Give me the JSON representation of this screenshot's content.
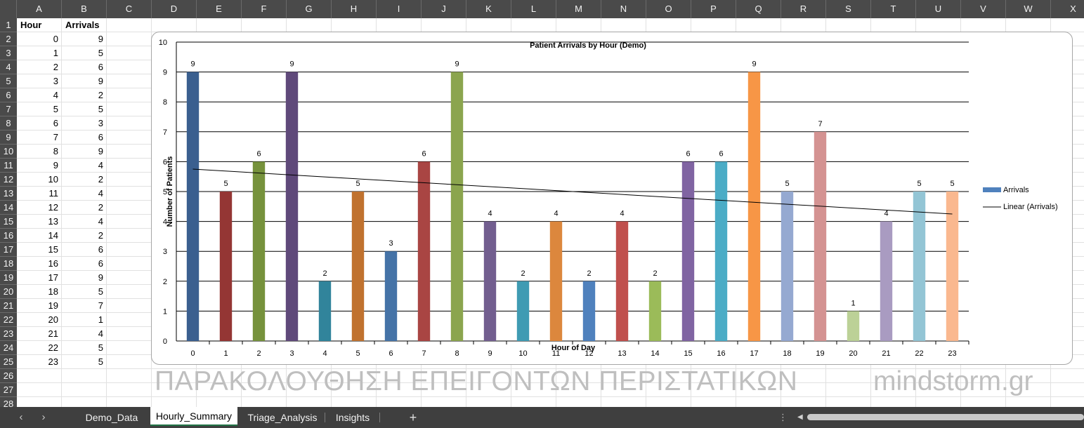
{
  "columns": [
    "A",
    "B",
    "C",
    "D",
    "E",
    "F",
    "G",
    "H",
    "I",
    "J",
    "K",
    "L",
    "M",
    "N",
    "O",
    "P",
    "Q",
    "R",
    "S",
    "T",
    "U",
    "V",
    "W",
    "X"
  ],
  "rows": [
    "1",
    "2",
    "3",
    "4",
    "5",
    "6",
    "7",
    "8",
    "9",
    "10",
    "11",
    "12",
    "13",
    "14",
    "15",
    "16",
    "17",
    "18",
    "19",
    "20",
    "21",
    "22",
    "23",
    "24",
    "25",
    "26",
    "27",
    "28"
  ],
  "sheet": {
    "header_hour": "Hour",
    "header_arrivals": "Arrivals",
    "data": [
      {
        "hour": "0",
        "arrivals": "9"
      },
      {
        "hour": "1",
        "arrivals": "5"
      },
      {
        "hour": "2",
        "arrivals": "6"
      },
      {
        "hour": "3",
        "arrivals": "9"
      },
      {
        "hour": "4",
        "arrivals": "2"
      },
      {
        "hour": "5",
        "arrivals": "5"
      },
      {
        "hour": "6",
        "arrivals": "3"
      },
      {
        "hour": "7",
        "arrivals": "6"
      },
      {
        "hour": "8",
        "arrivals": "9"
      },
      {
        "hour": "9",
        "arrivals": "4"
      },
      {
        "hour": "10",
        "arrivals": "2"
      },
      {
        "hour": "11",
        "arrivals": "4"
      },
      {
        "hour": "12",
        "arrivals": "2"
      },
      {
        "hour": "13",
        "arrivals": "4"
      },
      {
        "hour": "14",
        "arrivals": "2"
      },
      {
        "hour": "15",
        "arrivals": "6"
      },
      {
        "hour": "16",
        "arrivals": "6"
      },
      {
        "hour": "17",
        "arrivals": "9"
      },
      {
        "hour": "18",
        "arrivals": "5"
      },
      {
        "hour": "19",
        "arrivals": "7"
      },
      {
        "hour": "20",
        "arrivals": "1"
      },
      {
        "hour": "21",
        "arrivals": "4"
      },
      {
        "hour": "22",
        "arrivals": "5"
      },
      {
        "hour": "23",
        "arrivals": "5"
      }
    ]
  },
  "chart_data": {
    "type": "bar",
    "title": "Patient Arrivals by Hour (Demo)",
    "xlabel": "Hour of Day",
    "ylabel": "Number of Patients",
    "ylim": [
      0,
      10
    ],
    "yticks": [
      0,
      1,
      2,
      3,
      4,
      5,
      6,
      7,
      8,
      9,
      10
    ],
    "grid": true,
    "legend_position": "right",
    "categories": [
      "0",
      "1",
      "2",
      "3",
      "4",
      "5",
      "6",
      "7",
      "8",
      "9",
      "10",
      "11",
      "12",
      "13",
      "14",
      "15",
      "16",
      "17",
      "18",
      "19",
      "20",
      "21",
      "22",
      "23"
    ],
    "series": [
      {
        "name": "Arrivals",
        "values": [
          9,
          5,
          6,
          9,
          2,
          5,
          3,
          6,
          9,
          4,
          2,
          4,
          2,
          4,
          2,
          6,
          6,
          9,
          5,
          7,
          1,
          4,
          5,
          5
        ]
      }
    ],
    "trendline": {
      "name": "Linear (Arrivals)",
      "type": "linear",
      "start": 5.75,
      "end": 4.25
    },
    "legend": [
      "Arrivals",
      "Linear (Arrivals)"
    ],
    "bar_colors": [
      "#3a5f8f",
      "#943634",
      "#76923c",
      "#5f497a",
      "#31849b",
      "#c0722f",
      "#4573a7",
      "#a94543",
      "#8ba54e",
      "#725e8f",
      "#3f9bb3",
      "#dc873d",
      "#4f81bd",
      "#c0504d",
      "#9bbb59",
      "#8064a2",
      "#4bacc6",
      "#f79646",
      "#95a9d1",
      "#d49392",
      "#bcd197",
      "#a99bc1",
      "#93c5d5",
      "#fab88f"
    ],
    "legend_color": "#4f81bd"
  },
  "overlay": {
    "title": "ΠΑΡΑΚΟΛΟΥΘΗΣΗ ΕΠΕΙΓΟΝΤΩΝ ΠΕΡΙΣΤΑΤΙΚΩΝ",
    "brand": "mindstorm.gr"
  },
  "tabs": {
    "prev": "‹",
    "next": "›",
    "items": [
      "Demo_Data",
      "Hourly_Summary",
      "Triage_Analysis",
      "Insights"
    ],
    "active": "Hourly_Summary",
    "add": "+",
    "more": "⋮",
    "scroll_left": "◀"
  }
}
